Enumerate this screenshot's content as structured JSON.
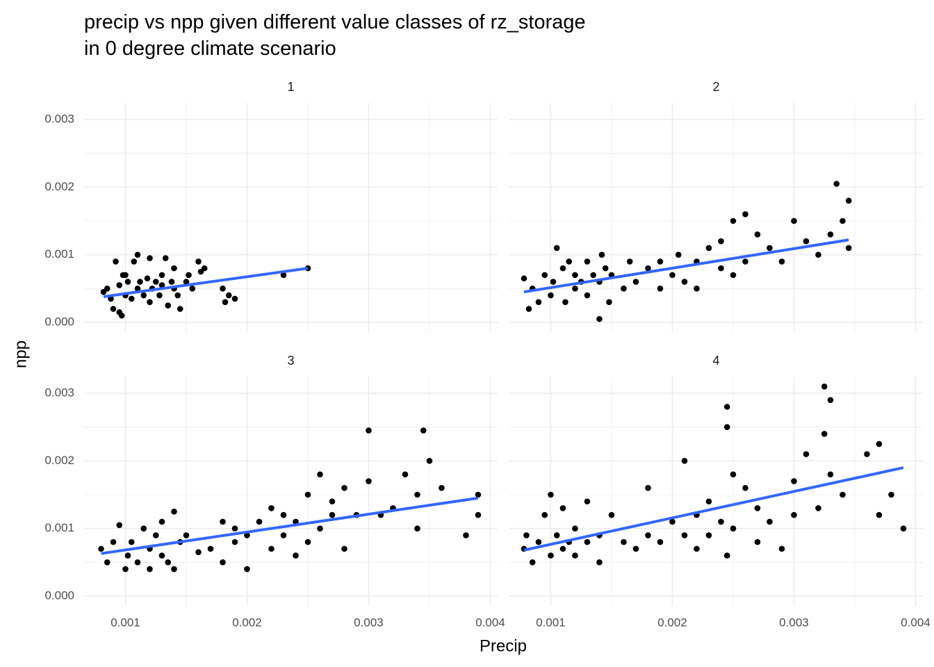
{
  "chart_data": {
    "type": "scatter",
    "title": [
      "precip vs npp given different value classes of rz_storage",
      " in 0 degree climate scenario"
    ],
    "x_label": "Precip",
    "y_label": "npp",
    "xlim": [
      0.00066,
      0.00406
    ],
    "ylim": [
      -0.000144,
      0.003247
    ],
    "xticks": [
      0.001,
      0.002,
      0.003,
      0.004
    ],
    "yticks": [
      {
        "value": 0,
        "label": "0.000"
      },
      0.001,
      0.002,
      0.003
    ],
    "minor_xticks": [
      0.0015,
      0.0025,
      0.0035
    ],
    "minor_yticks": [
      0.0005,
      0.0015,
      0.0025
    ],
    "grid": true,
    "color": "#000000",
    "trend_color": "#3366ff",
    "facets": [
      {
        "label": "1",
        "x": [
          0.00082,
          0.00085,
          0.00088,
          0.0009,
          0.00092,
          0.00095,
          0.00097,
          0.001,
          0.001,
          0.00102,
          0.00105,
          0.00107,
          0.0011,
          0.0011,
          0.00112,
          0.00115,
          0.00118,
          0.0012,
          0.0012,
          0.00122,
          0.00125,
          0.00128,
          0.0013,
          0.0013,
          0.00133,
          0.00135,
          0.00138,
          0.0014,
          0.0014,
          0.00143,
          0.00145,
          0.0015,
          0.00152,
          0.00155,
          0.0016,
          0.00162,
          0.00165,
          0.0018,
          0.00182,
          0.00185,
          0.0019,
          0.0023,
          0.0025,
          0.00095,
          0.00098
        ],
        "values": [
          0.00045,
          0.0005,
          0.00035,
          0.0002,
          0.0009,
          0.00055,
          0.0001,
          0.0004,
          0.0007,
          0.0006,
          0.00035,
          0.0009,
          0.0005,
          0.001,
          0.0006,
          0.0004,
          0.00065,
          0.0003,
          0.00095,
          0.0005,
          0.0006,
          0.0004,
          0.00055,
          0.0007,
          0.00095,
          0.00025,
          0.0006,
          0.0005,
          0.0008,
          0.0004,
          0.0002,
          0.0006,
          0.0007,
          0.0005,
          0.0009,
          0.00075,
          0.0008,
          0.0005,
          0.0003,
          0.0004,
          0.00035,
          0.0007,
          0.0008,
          0.00015,
          0.0007
        ],
        "trend": {
          "x": [
            0.00082,
            0.0025
          ],
          "values": [
            0.00038,
            0.0008
          ]
        }
      },
      {
        "label": "2",
        "x": [
          0.00078,
          0.00082,
          0.00085,
          0.0009,
          0.00095,
          0.001,
          0.00102,
          0.00105,
          0.0011,
          0.00112,
          0.00115,
          0.0012,
          0.0012,
          0.00125,
          0.0013,
          0.0013,
          0.00135,
          0.0014,
          0.0014,
          0.00142,
          0.00145,
          0.00148,
          0.0015,
          0.0016,
          0.00165,
          0.0017,
          0.0018,
          0.0019,
          0.0019,
          0.002,
          0.00205,
          0.0021,
          0.0022,
          0.0022,
          0.0023,
          0.0024,
          0.0024,
          0.0025,
          0.0025,
          0.0026,
          0.0026,
          0.0027,
          0.0028,
          0.0029,
          0.003,
          0.0031,
          0.0032,
          0.0033,
          0.00335,
          0.0034,
          0.00345,
          0.00345
        ],
        "values": [
          0.00065,
          0.0002,
          0.0005,
          0.0003,
          0.0007,
          0.0004,
          0.0006,
          0.0011,
          0.0008,
          0.0003,
          0.0009,
          0.0005,
          0.0007,
          0.0006,
          0.0004,
          0.0009,
          0.0007,
          5e-05,
          0.0006,
          0.001,
          0.0008,
          0.0003,
          0.0007,
          0.0005,
          0.0009,
          0.0006,
          0.0008,
          0.0005,
          0.0009,
          0.0007,
          0.001,
          0.0006,
          0.0009,
          0.0005,
          0.0011,
          0.0008,
          0.0012,
          0.0007,
          0.0015,
          0.0009,
          0.0016,
          0.0013,
          0.0011,
          0.0009,
          0.0015,
          0.0012,
          0.001,
          0.0013,
          0.00205,
          0.0015,
          0.0018,
          0.0011
        ],
        "trend": {
          "x": [
            0.00078,
            0.00345
          ],
          "values": [
            0.00045,
            0.00122
          ]
        }
      },
      {
        "label": "3",
        "x": [
          0.0008,
          0.00085,
          0.0009,
          0.00095,
          0.001,
          0.00102,
          0.00105,
          0.0011,
          0.00115,
          0.0012,
          0.0012,
          0.00125,
          0.0013,
          0.0013,
          0.00135,
          0.0014,
          0.0014,
          0.00145,
          0.0015,
          0.0016,
          0.0017,
          0.0018,
          0.0018,
          0.0019,
          0.0019,
          0.002,
          0.002,
          0.0021,
          0.0022,
          0.0022,
          0.0023,
          0.0023,
          0.0024,
          0.0024,
          0.0025,
          0.0025,
          0.0026,
          0.0026,
          0.0027,
          0.0027,
          0.0028,
          0.0028,
          0.0029,
          0.003,
          0.003,
          0.0031,
          0.0032,
          0.0033,
          0.0034,
          0.0034,
          0.00345,
          0.0035,
          0.0036,
          0.0038,
          0.0039,
          0.0039
        ],
        "values": [
          0.0007,
          0.0005,
          0.0008,
          0.00105,
          0.0004,
          0.0006,
          0.0008,
          0.0005,
          0.001,
          0.0007,
          0.0004,
          0.0009,
          0.0006,
          0.0011,
          0.0005,
          0.00125,
          0.0004,
          0.0008,
          0.0009,
          0.00065,
          0.0007,
          0.0005,
          0.0011,
          0.0008,
          0.001,
          0.0004,
          0.0009,
          0.0011,
          0.0007,
          0.0013,
          0.0009,
          0.0012,
          0.0006,
          0.0011,
          0.0008,
          0.0015,
          0.001,
          0.0018,
          0.0012,
          0.0014,
          0.0007,
          0.0016,
          0.0012,
          0.0017,
          0.00245,
          0.0012,
          0.0013,
          0.0018,
          0.0015,
          0.001,
          0.00245,
          0.002,
          0.0016,
          0.0009,
          0.0015,
          0.0012
        ],
        "trend": {
          "x": [
            0.0008,
            0.0039
          ],
          "values": [
            0.00063,
            0.00145
          ]
        }
      },
      {
        "label": "4",
        "x": [
          0.00078,
          0.0008,
          0.00085,
          0.0009,
          0.00095,
          0.001,
          0.001,
          0.00105,
          0.0011,
          0.0011,
          0.00115,
          0.0012,
          0.0012,
          0.0013,
          0.0013,
          0.0014,
          0.0014,
          0.0015,
          0.0016,
          0.0017,
          0.0018,
          0.0018,
          0.0019,
          0.002,
          0.0021,
          0.0021,
          0.0022,
          0.0022,
          0.0023,
          0.0023,
          0.0024,
          0.00245,
          0.00245,
          0.00245,
          0.0025,
          0.0025,
          0.0026,
          0.0027,
          0.0027,
          0.0028,
          0.0029,
          0.003,
          0.003,
          0.0031,
          0.0032,
          0.00325,
          0.00325,
          0.0033,
          0.0033,
          0.0034,
          0.0036,
          0.0037,
          0.0037,
          0.0038,
          0.0039
        ],
        "values": [
          0.0007,
          0.0009,
          0.0005,
          0.0008,
          0.0012,
          0.0006,
          0.0015,
          0.0009,
          0.0007,
          0.0013,
          0.0008,
          0.0006,
          0.001,
          0.0008,
          0.0014,
          0.0005,
          0.0009,
          0.0012,
          0.0008,
          0.0007,
          0.0009,
          0.0016,
          0.0008,
          0.0011,
          0.002,
          0.0009,
          0.0012,
          0.0007,
          0.0014,
          0.0009,
          0.0011,
          0.0028,
          0.0025,
          0.0006,
          0.0018,
          0.001,
          0.0016,
          0.0008,
          0.0013,
          0.0011,
          0.0007,
          0.0012,
          0.0017,
          0.0021,
          0.0013,
          0.0031,
          0.0024,
          0.0029,
          0.0018,
          0.0015,
          0.0021,
          0.0012,
          0.00225,
          0.0015,
          0.001
        ],
        "trend": {
          "x": [
            0.00078,
            0.0039
          ],
          "values": [
            0.00068,
            0.0019
          ]
        }
      }
    ]
  }
}
